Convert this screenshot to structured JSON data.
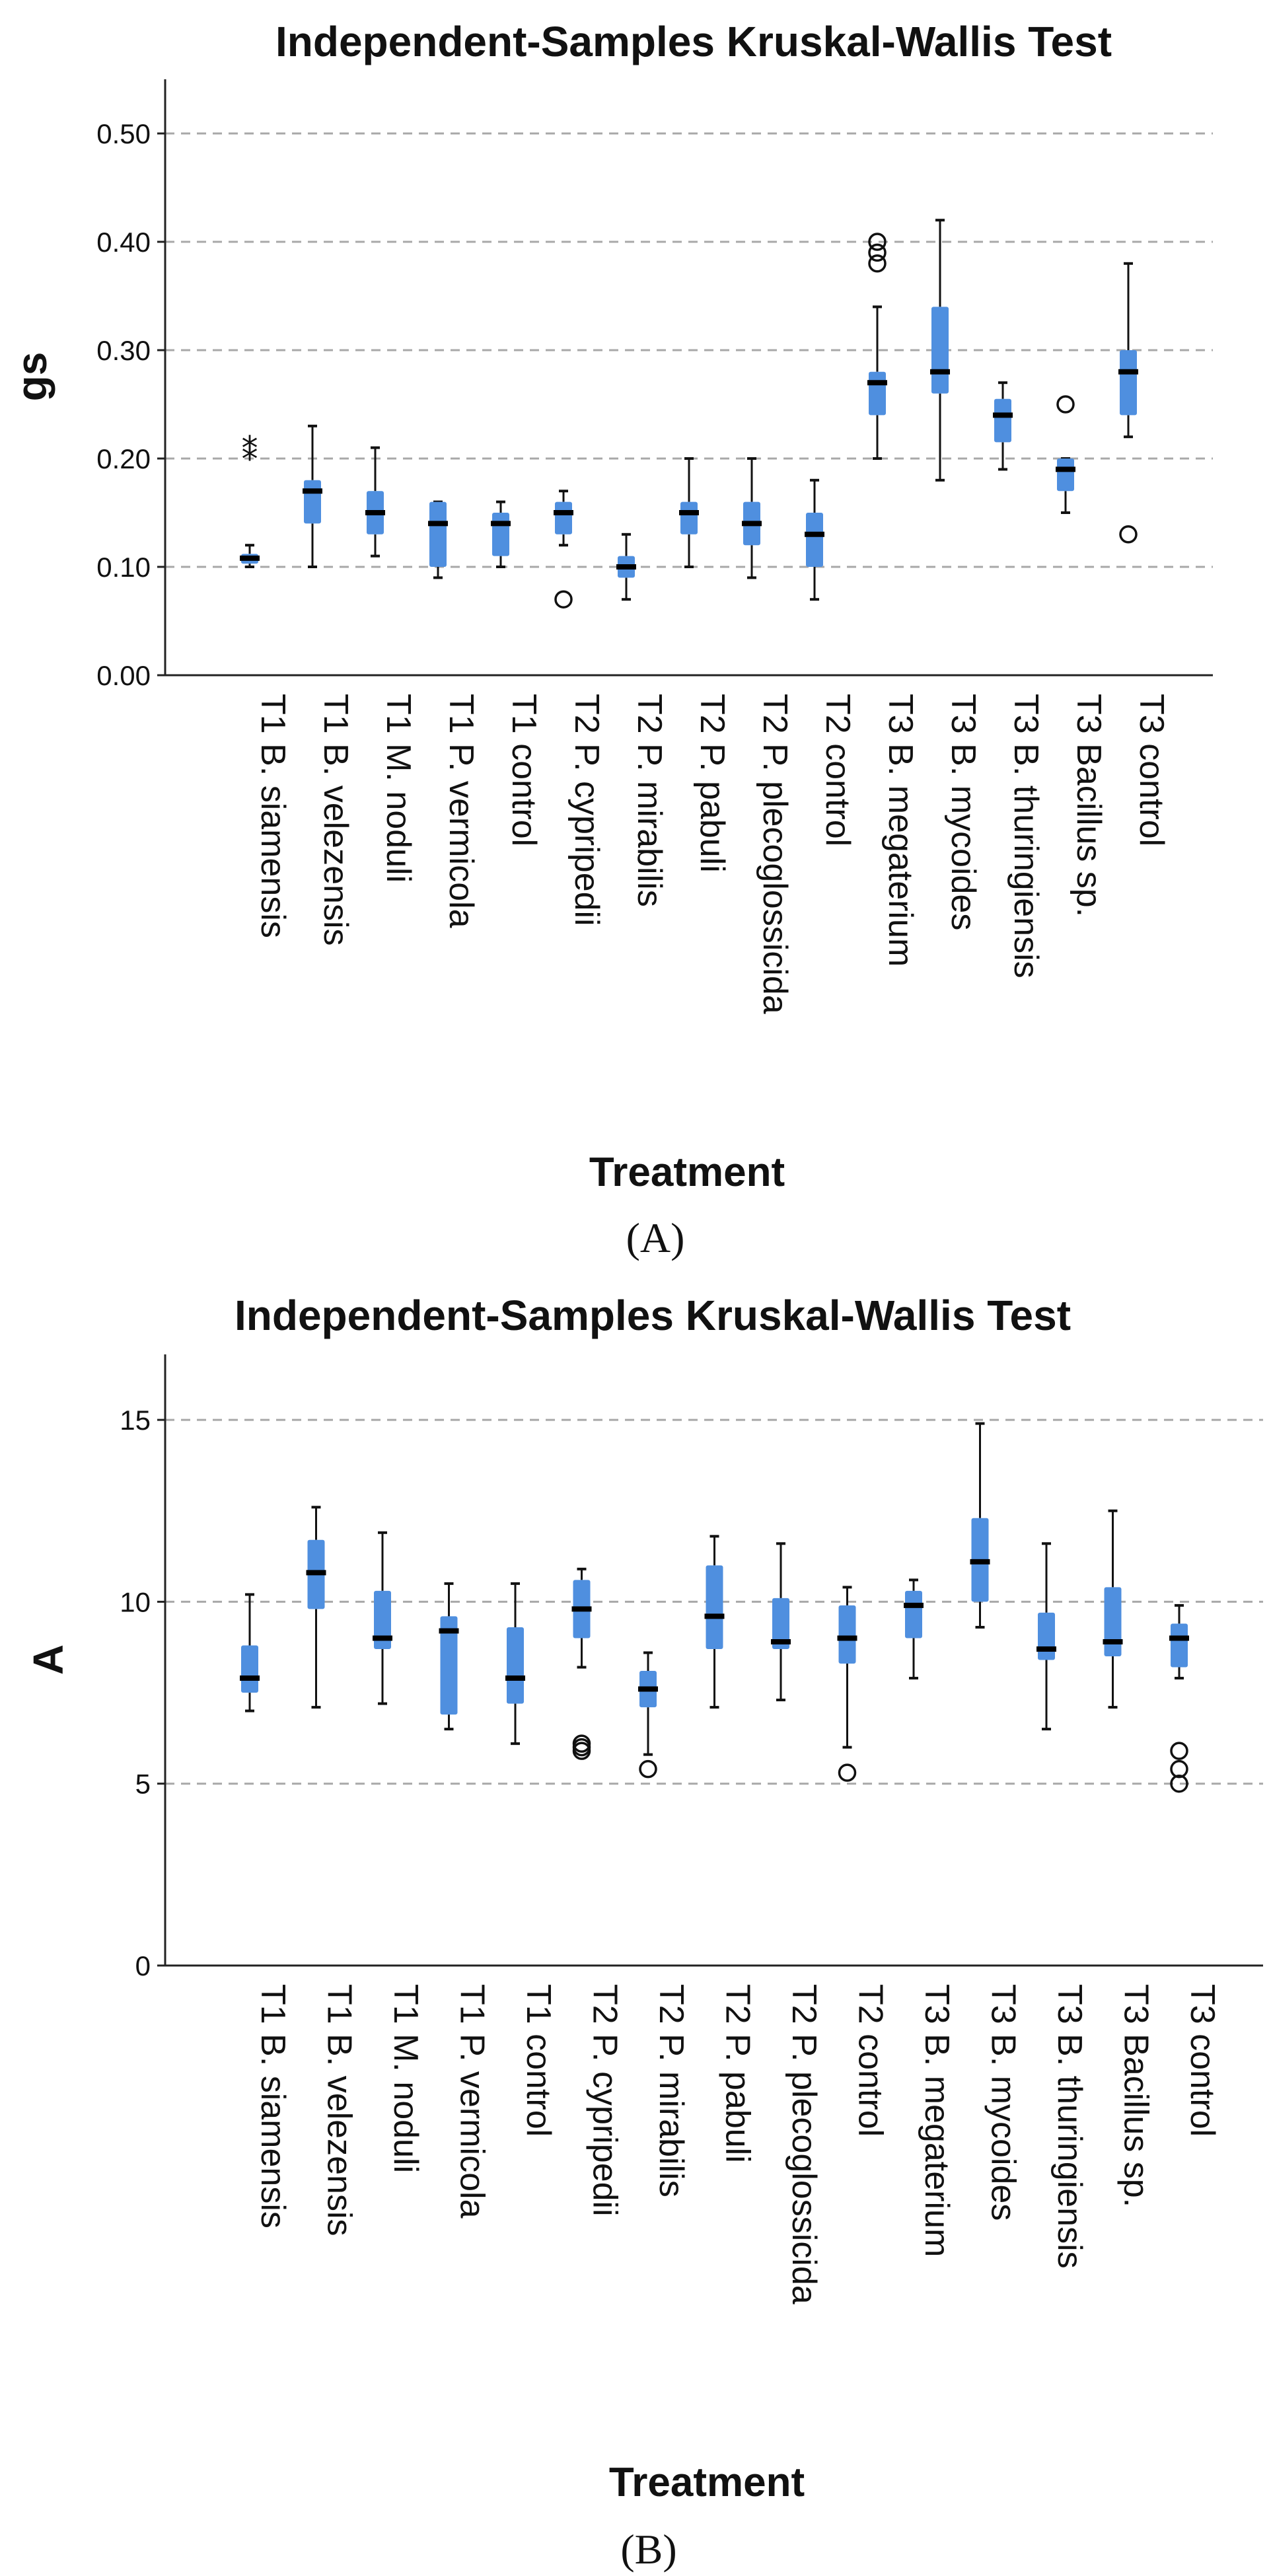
{
  "figure": {
    "panels": [
      "(A)",
      "(B)"
    ],
    "colors": {
      "box": "#4f8fdf",
      "median": "#000000",
      "grid": "#a8a8a8",
      "axis": "#222222"
    }
  },
  "chart_data": [
    {
      "type": "box",
      "title": "Independent-Samples Kruskal-Wallis Test",
      "xlabel": "Treatment",
      "ylabel": "gs",
      "ylim": [
        0,
        0.55
      ],
      "yticks": [
        "0.00",
        "0.10",
        "0.20",
        "0.30",
        "0.40",
        "0.50"
      ],
      "grid": "dashed horizontal at 0.10–0.50",
      "categories": [
        "T1 B. siamensis",
        "T1 B. velezensis",
        "T1 M. noduli",
        "T1 P. vermicola",
        "T1 control",
        "T2 P. cypripedii",
        "T2 P. mirabilis",
        "T2 P. pabuli",
        "T2 P. plecoglossicida",
        "T2 control",
        "T3 B. megaterium",
        "T3 B. mycoides",
        "T3 B. thuringiensis",
        "T3 Bacillus sp.",
        "T3 control"
      ],
      "boxes": [
        {
          "min": 0.1,
          "q1": 0.103,
          "median": 0.108,
          "q3": 0.112,
          "max": 0.12,
          "outliers": [],
          "extremes": [
            0.2,
            0.21
          ]
        },
        {
          "min": 0.1,
          "q1": 0.14,
          "median": 0.17,
          "q3": 0.18,
          "max": 0.23,
          "outliers": [],
          "extremes": []
        },
        {
          "min": 0.11,
          "q1": 0.13,
          "median": 0.15,
          "q3": 0.17,
          "max": 0.21,
          "outliers": [],
          "extremes": []
        },
        {
          "min": 0.09,
          "q1": 0.1,
          "median": 0.14,
          "q3": 0.16,
          "max": 0.16,
          "outliers": [],
          "extremes": []
        },
        {
          "min": 0.1,
          "q1": 0.11,
          "median": 0.14,
          "q3": 0.15,
          "max": 0.16,
          "outliers": [],
          "extremes": []
        },
        {
          "min": 0.12,
          "q1": 0.13,
          "median": 0.15,
          "q3": 0.16,
          "max": 0.17,
          "outliers": [
            0.07
          ],
          "extremes": []
        },
        {
          "min": 0.07,
          "q1": 0.09,
          "median": 0.1,
          "q3": 0.11,
          "max": 0.13,
          "outliers": [],
          "extremes": []
        },
        {
          "min": 0.1,
          "q1": 0.13,
          "median": 0.15,
          "q3": 0.16,
          "max": 0.2,
          "outliers": [],
          "extremes": []
        },
        {
          "min": 0.09,
          "q1": 0.12,
          "median": 0.14,
          "q3": 0.16,
          "max": 0.2,
          "outliers": [],
          "extremes": []
        },
        {
          "min": 0.07,
          "q1": 0.1,
          "median": 0.13,
          "q3": 0.15,
          "max": 0.18,
          "outliers": [],
          "extremes": []
        },
        {
          "min": 0.2,
          "q1": 0.24,
          "median": 0.27,
          "q3": 0.28,
          "max": 0.34,
          "outliers": [
            0.38,
            0.39,
            0.4
          ],
          "extremes": []
        },
        {
          "min": 0.18,
          "q1": 0.26,
          "median": 0.28,
          "q3": 0.34,
          "max": 0.42,
          "outliers": [],
          "extremes": []
        },
        {
          "min": 0.19,
          "q1": 0.215,
          "median": 0.24,
          "q3": 0.255,
          "max": 0.27,
          "outliers": [],
          "extremes": []
        },
        {
          "min": 0.15,
          "q1": 0.17,
          "median": 0.19,
          "q3": 0.2,
          "max": 0.2,
          "outliers": [
            0.25
          ],
          "extremes": []
        },
        {
          "min": 0.22,
          "q1": 0.24,
          "median": 0.28,
          "q3": 0.3,
          "max": 0.38,
          "outliers": [
            0.13
          ],
          "extremes": []
        }
      ]
    },
    {
      "type": "box",
      "title": "Independent-Samples Kruskal-Wallis Test",
      "xlabel": "Treatment",
      "ylabel": "A",
      "ylim": [
        0,
        16.8
      ],
      "yticks": [
        "0",
        "5",
        "10",
        "15"
      ],
      "grid": "dashed horizontal at 5, 10, 15",
      "categories": [
        "T1 B. siamensis",
        "T1 B. velezensis",
        "T1 M. noduli",
        "T1 P. vermicola",
        "T1 control",
        "T2 P. cypripedii",
        "T2 P. mirabilis",
        "T2 P. pabuli",
        "T2 P. plecoglossicida",
        "T2 control",
        "T3 B. megaterium",
        "T3 B. mycoides",
        "T3 B. thuringiensis",
        "T3 Bacillus sp.",
        "T3 control"
      ],
      "boxes": [
        {
          "min": 7.0,
          "q1": 7.5,
          "median": 7.9,
          "q3": 8.8,
          "max": 10.2,
          "outliers": [],
          "extremes": []
        },
        {
          "min": 7.1,
          "q1": 9.8,
          "median": 10.8,
          "q3": 11.7,
          "max": 12.6,
          "outliers": [],
          "extremes": []
        },
        {
          "min": 7.2,
          "q1": 8.7,
          "median": 9.0,
          "q3": 10.3,
          "max": 11.9,
          "outliers": [],
          "extremes": []
        },
        {
          "min": 6.5,
          "q1": 6.9,
          "median": 9.2,
          "q3": 9.6,
          "max": 10.5,
          "outliers": [],
          "extremes": []
        },
        {
          "min": 6.1,
          "q1": 7.2,
          "median": 7.9,
          "q3": 9.3,
          "max": 10.5,
          "outliers": [],
          "extremes": []
        },
        {
          "min": 8.2,
          "q1": 9.0,
          "median": 9.8,
          "q3": 10.6,
          "max": 10.9,
          "outliers": [
            5.9,
            6.0,
            6.1
          ],
          "extremes": []
        },
        {
          "min": 5.8,
          "q1": 7.1,
          "median": 7.6,
          "q3": 8.1,
          "max": 8.6,
          "outliers": [
            5.4
          ],
          "extremes": []
        },
        {
          "min": 7.1,
          "q1": 8.7,
          "median": 9.6,
          "q3": 11.0,
          "max": 11.8,
          "outliers": [],
          "extremes": []
        },
        {
          "min": 7.3,
          "q1": 8.7,
          "median": 8.9,
          "q3": 10.1,
          "max": 11.6,
          "outliers": [],
          "extremes": []
        },
        {
          "min": 6.0,
          "q1": 8.3,
          "median": 9.0,
          "q3": 9.9,
          "max": 10.4,
          "outliers": [
            5.3
          ],
          "extremes": []
        },
        {
          "min": 7.9,
          "q1": 9.0,
          "median": 9.9,
          "q3": 10.3,
          "max": 10.6,
          "outliers": [],
          "extremes": []
        },
        {
          "min": 9.3,
          "q1": 10.0,
          "median": 11.1,
          "q3": 12.3,
          "max": 14.9,
          "outliers": [],
          "extremes": []
        },
        {
          "min": 6.5,
          "q1": 8.4,
          "median": 8.7,
          "q3": 9.7,
          "max": 11.6,
          "outliers": [],
          "extremes": []
        },
        {
          "min": 7.1,
          "q1": 8.5,
          "median": 8.9,
          "q3": 10.4,
          "max": 12.5,
          "outliers": [],
          "extremes": []
        },
        {
          "min": 7.9,
          "q1": 8.2,
          "median": 9.0,
          "q3": 9.4,
          "max": 9.9,
          "outliers": [
            5.0,
            5.4,
            5.9
          ],
          "extremes": []
        }
      ]
    }
  ]
}
